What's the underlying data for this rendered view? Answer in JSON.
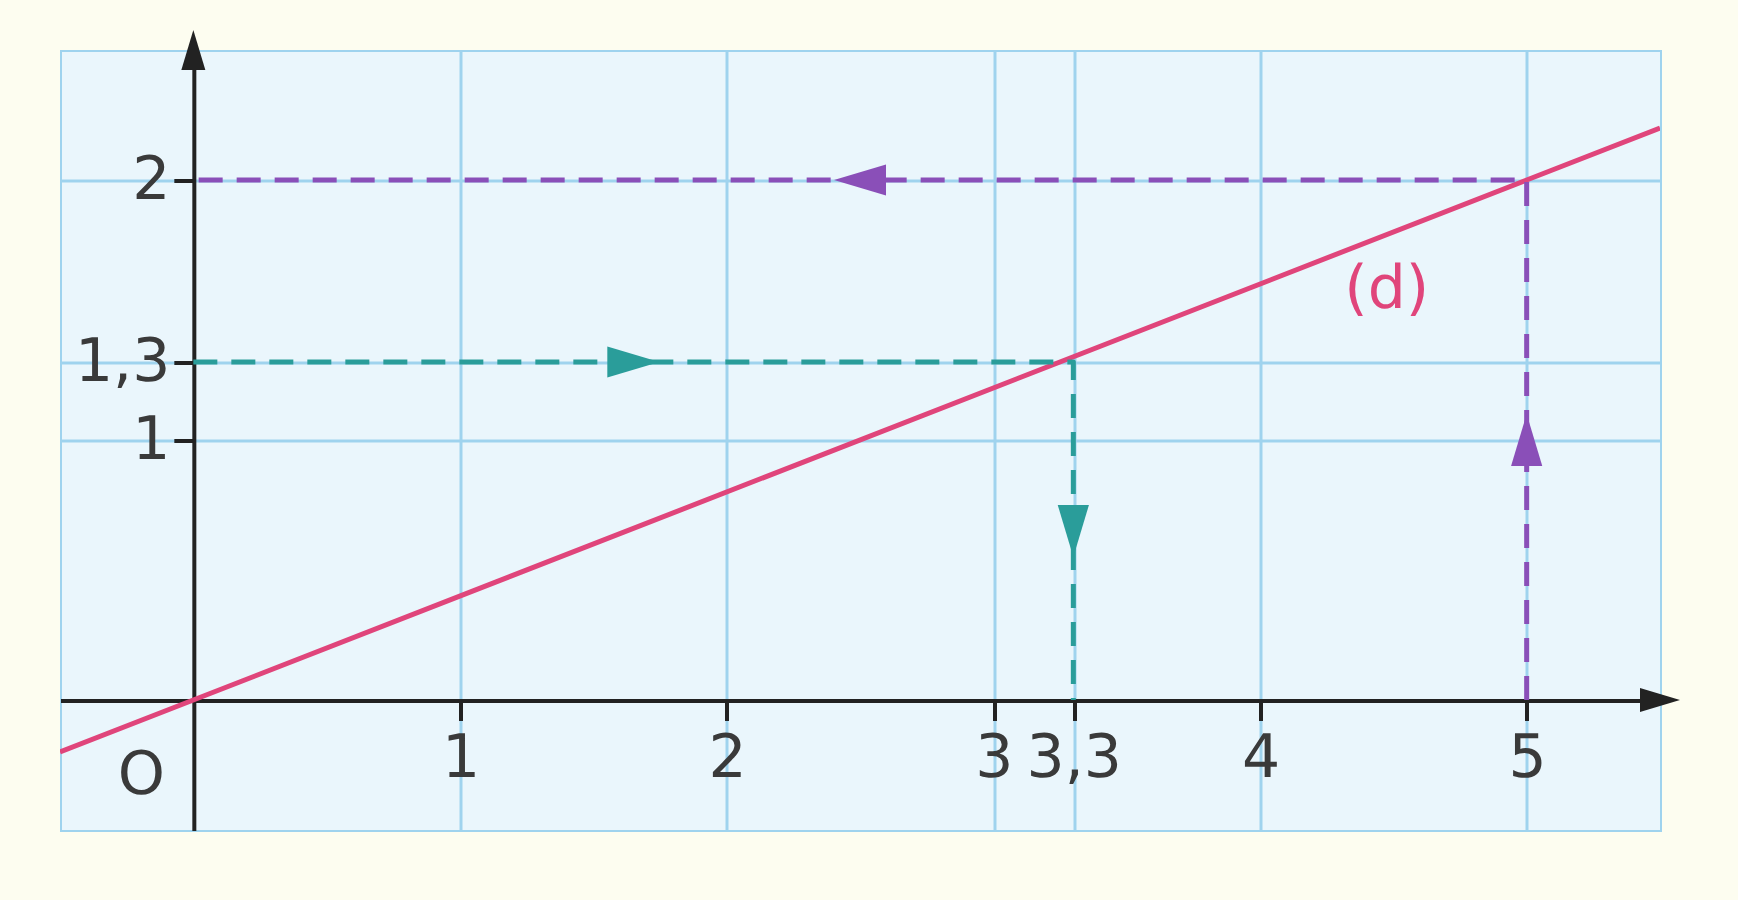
{
  "chart_data": {
    "type": "line",
    "xlim": [
      -0.5,
      5.5
    ],
    "ylim": [
      -0.5,
      2.5
    ],
    "xticks": [
      1,
      2,
      3,
      {
        "value": 3.3,
        "label": "3,3"
      },
      4,
      5
    ],
    "yticks": [
      1,
      {
        "value": 1.3,
        "label": "1,3"
      },
      2
    ],
    "grid": true,
    "annotations": [
      {
        "text": "O",
        "x": 0,
        "y": 0
      }
    ],
    "series": [
      {
        "name": "(d)",
        "color": "#e0457b",
        "x": [
          -0.5,
          0,
          5,
          5.5
        ],
        "values": [
          -0.2,
          0,
          2,
          2.2
        ]
      },
      {
        "color": "#2a9d9a",
        "line_style": "dashed",
        "x": [
          0,
          3.3,
          3.3
        ],
        "values": [
          1.3,
          1.3,
          0
        ]
      },
      {
        "color": "#8a4fb8",
        "line_style": "dashed",
        "x": [
          5,
          5,
          0
        ],
        "values": [
          0,
          2,
          2
        ]
      }
    ]
  }
}
